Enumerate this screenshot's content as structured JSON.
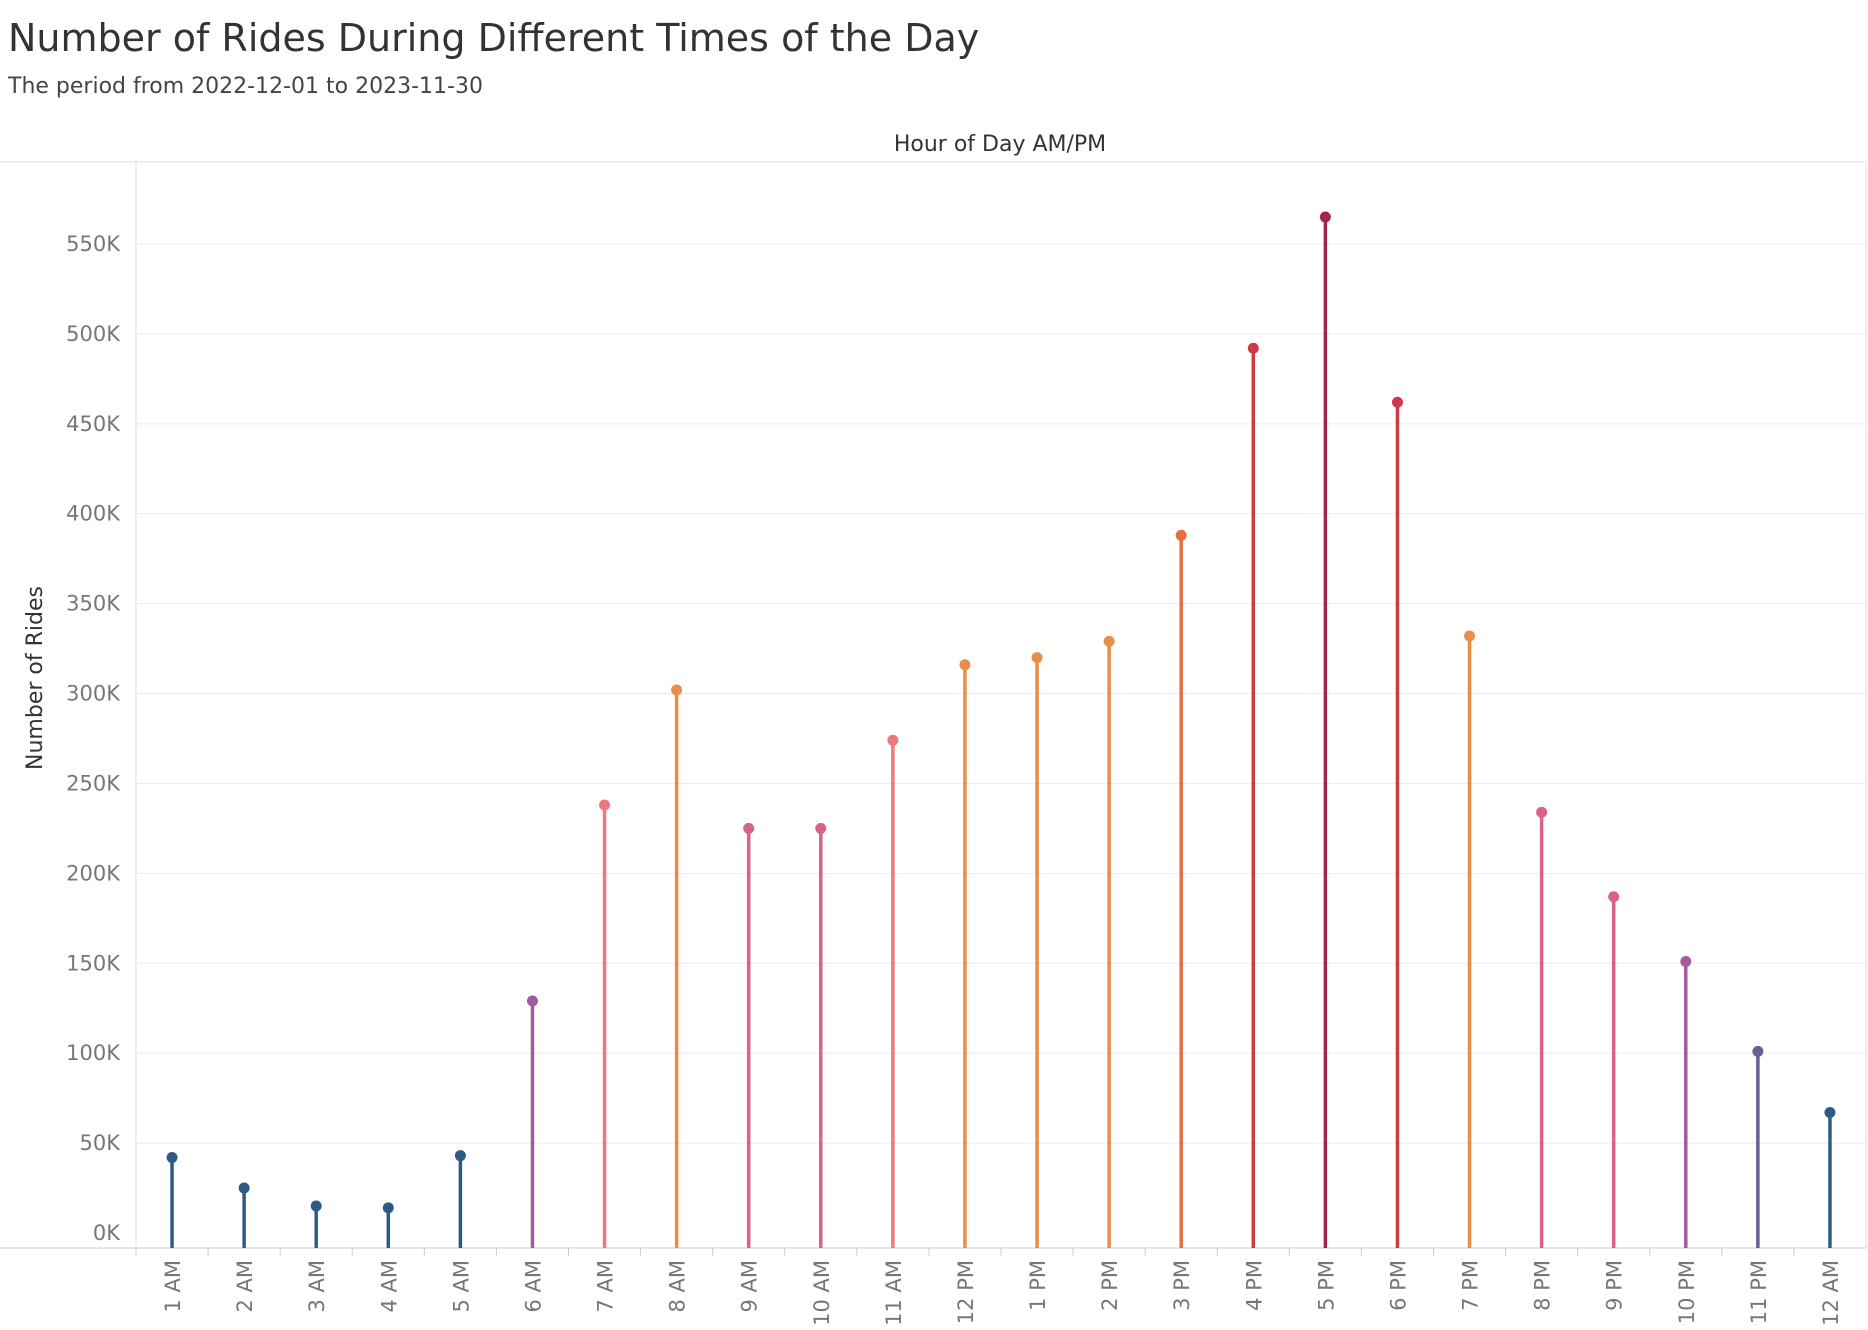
{
  "header": {
    "title": "Number of Rides During Different Times of the Day",
    "subtitle": "The period from 2022-12-01 to 2023-11-30"
  },
  "chart_data": {
    "type": "lollipop",
    "title": "Number of Rides During Different Times of the Day",
    "subtitle": "The period from 2022-12-01 to 2023-11-30",
    "xlabel": "Hour of Day AM/PM",
    "ylabel": "Number of Rides",
    "ylim": [
      0,
      570000
    ],
    "yticks": [
      0,
      50000,
      100000,
      150000,
      200000,
      250000,
      300000,
      350000,
      400000,
      450000,
      500000,
      550000
    ],
    "ytick_labels": [
      "0K",
      "50K",
      "100K",
      "150K",
      "200K",
      "250K",
      "300K",
      "350K",
      "400K",
      "450K",
      "500K",
      "550K"
    ],
    "grid": "horizontal",
    "categories": [
      "1 AM",
      "2 AM",
      "3 AM",
      "4 AM",
      "5 AM",
      "6 AM",
      "7 AM",
      "8 AM",
      "9 AM",
      "10 AM",
      "11 AM",
      "12 PM",
      "1 PM",
      "2 PM",
      "3 PM",
      "4 PM",
      "5 PM",
      "6 PM",
      "7 PM",
      "8 PM",
      "9 PM",
      "10 PM",
      "11 PM",
      "12 AM"
    ],
    "values": [
      42000,
      25000,
      15000,
      14000,
      43000,
      129000,
      238000,
      302000,
      225000,
      225000,
      274000,
      316000,
      320000,
      329000,
      388000,
      492000,
      565000,
      462000,
      332000,
      234000,
      187000,
      151000,
      101000,
      67000
    ],
    "colors": [
      "#2e5b85",
      "#2e5b85",
      "#2e5b85",
      "#2e5b85",
      "#2e5b85",
      "#a35a9e",
      "#ef7878",
      "#e98d49",
      "#d9628c",
      "#d9628c",
      "#ef7878",
      "#e98d49",
      "#e98d49",
      "#e98d49",
      "#e46f45",
      "#cf3a4a",
      "#a3244d",
      "#cf3a4a",
      "#e98d49",
      "#d9628c",
      "#d9628c",
      "#a35a9e",
      "#6a5e95",
      "#2e5b85"
    ]
  }
}
